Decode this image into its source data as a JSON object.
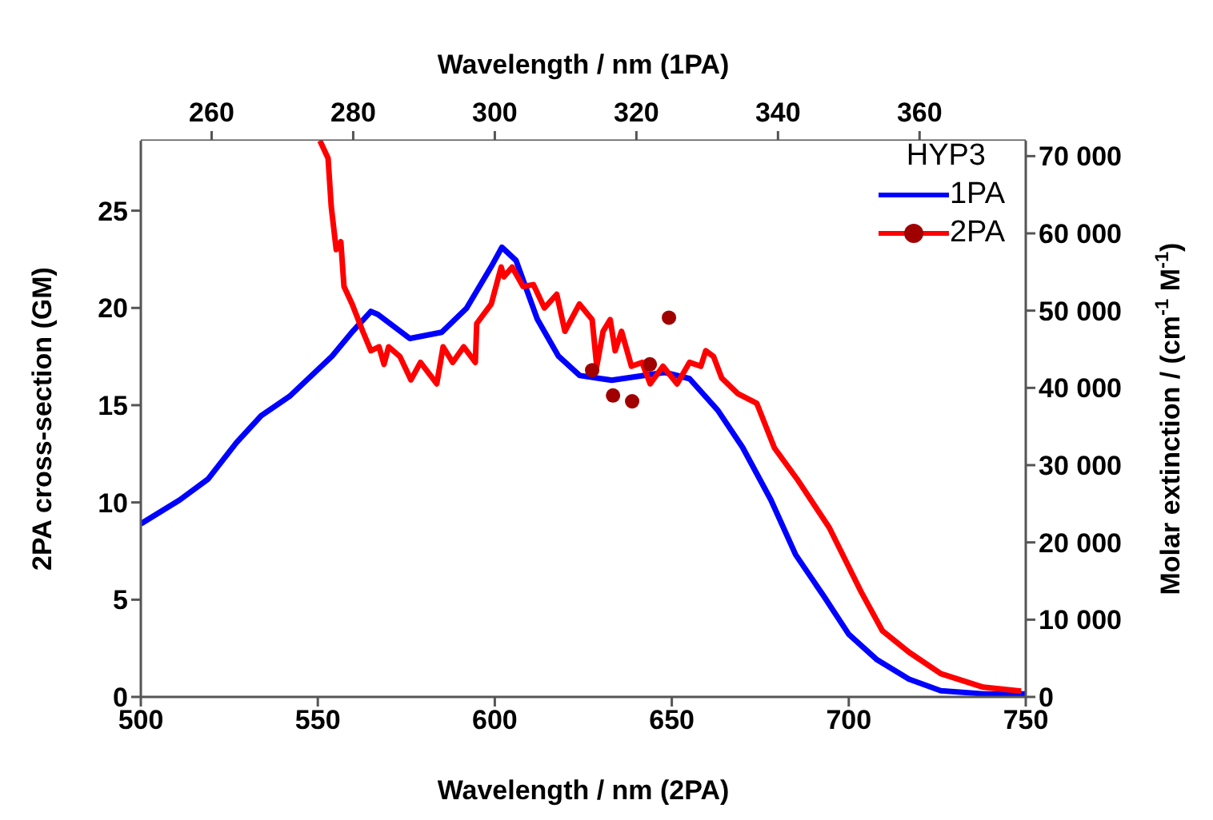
{
  "chart_data": {
    "type": "line",
    "xlabel": "Wavelength  / nm (2PA)",
    "x2label": "Wavelength  / nm (1PA)",
    "ylabel": "2PA cross-section (GM)",
    "y2label": "Molar extinction  / (cm$^{-1}$ M$^{-1}$)",
    "legend_title": "HYP3",
    "legend": "top right",
    "grid": false,
    "xlim": [
      500,
      750
    ],
    "xticks": [
      500,
      550,
      600,
      650,
      700,
      750
    ],
    "x2lim": [
      250,
      375
    ],
    "x2ticks": [
      260,
      280,
      300,
      320,
      340,
      360
    ],
    "ylim": [
      0,
      28.6
    ],
    "yticks": [
      0,
      5,
      10,
      15,
      20,
      25
    ],
    "y2lim": [
      0,
      72000
    ],
    "y2ticks": [
      {
        "value": 0,
        "label": "0"
      },
      {
        "value": 10000,
        "label": "10 000"
      },
      {
        "value": 20000,
        "label": "20 000"
      },
      {
        "value": 30000,
        "label": "30 000"
      },
      {
        "value": 40000,
        "label": "40 000"
      },
      {
        "value": 50000,
        "label": "50 000"
      },
      {
        "value": 60000,
        "label": "60 000"
      },
      {
        "value": 70000,
        "label": "70 000"
      }
    ],
    "series": [
      {
        "name": "1PA",
        "type": "line",
        "axis": "y2",
        "color": "#0000ff",
        "x": [
          500,
          511,
          519,
          527,
          534,
          542,
          554,
          560,
          565,
          567,
          576,
          585,
          592,
          599,
          602,
          606,
          612,
          618,
          624,
          630,
          633,
          648,
          655,
          663,
          670,
          678,
          685,
          693,
          700,
          708,
          717,
          726,
          738,
          750
        ],
        "values": [
          22400,
          25500,
          28200,
          32900,
          36400,
          38900,
          44100,
          47400,
          49900,
          49500,
          46400,
          47200,
          50300,
          55700,
          58200,
          56500,
          48900,
          44100,
          41600,
          41200,
          41000,
          42000,
          41200,
          37100,
          32300,
          25500,
          18400,
          13000,
          8100,
          4800,
          2300,
          800,
          400,
          400
        ]
      },
      {
        "name": "2PA",
        "type": "line",
        "color": "#ff0000",
        "x": [
          550.6,
          552.9,
          553.8,
          555.2,
          556.5,
          557.4,
          559.7,
          562.7,
          565,
          567.3,
          568.7,
          570,
          573.2,
          576.3,
          579,
          583.6,
          585.4,
          588.1,
          591.2,
          594.5,
          594.9,
          599,
          601.8,
          602.6,
          604.9,
          608,
          610.9,
          614,
          617.5,
          619.8,
          623.9,
          627.5,
          628.8,
          630.6,
          632.6,
          634,
          635.8,
          638.6,
          641.6,
          643.9,
          647.5,
          651.5,
          655,
          658.2,
          659.6,
          661.8,
          664.1,
          668.6,
          674,
          679,
          685.4,
          694.5,
          703.5,
          709.5,
          717,
          726,
          738,
          748.7
        ],
        "values": [
          28.6,
          27.7,
          25.2,
          23.0,
          23.4,
          21.1,
          20.2,
          18.8,
          17.8,
          18.0,
          17.1,
          18.0,
          17.5,
          16.3,
          17.2,
          16.1,
          18.0,
          17.2,
          18.0,
          17.2,
          19.2,
          20.2,
          22.1,
          21.6,
          22.1,
          21.1,
          21.2,
          20.0,
          20.7,
          18.8,
          20.2,
          19.4,
          17.0,
          18.8,
          19.4,
          17.8,
          18.8,
          17.0,
          17.2,
          16.1,
          17.0,
          16.1,
          17.2,
          17.0,
          17.8,
          17.5,
          16.4,
          15.6,
          15.1,
          12.8,
          11.2,
          8.7,
          5.4,
          3.4,
          2.3,
          1.2,
          0.5,
          0.3
        ]
      },
      {
        "type": "scatter",
        "color": "#a00000",
        "marker": "circle",
        "x": [
          627.5,
          633.4,
          638.8,
          643.8,
          649.2
        ],
        "values": [
          16.8,
          15.5,
          15.2,
          17.1,
          19.5
        ]
      }
    ]
  }
}
